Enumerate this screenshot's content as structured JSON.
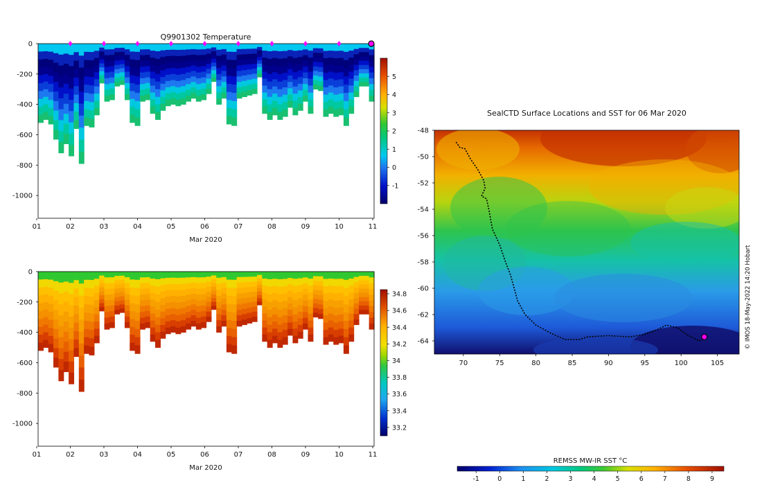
{
  "chart_data": [
    {
      "type": "heatmap",
      "title": "Q9901302  Temperature",
      "xlabel": "Mar 2020",
      "xticks": [
        "01",
        "02",
        "03",
        "04",
        "05",
        "06",
        "07",
        "08",
        "09",
        "10",
        "11"
      ],
      "yticks": [
        "0",
        "-200",
        "-400",
        "-600",
        "-800",
        "-1000"
      ],
      "ylim": [
        -1150,
        0
      ],
      "xlim_days": [
        1,
        11
      ],
      "colorbar": {
        "ticks": [
          "5",
          "4",
          "3",
          "2",
          "1",
          "0",
          "-1"
        ],
        "range": [
          -2,
          6
        ]
      },
      "surface_markers_days": [
        2,
        3,
        4,
        5,
        6,
        7,
        8,
        9,
        10,
        11
      ],
      "profile_max_depths": [
        520,
        500,
        530,
        630,
        720,
        660,
        740,
        560,
        790,
        540,
        550,
        470,
        260,
        380,
        370,
        280,
        270,
        370,
        520,
        540,
        380,
        370,
        460,
        500,
        440,
        410,
        400,
        410,
        400,
        380,
        360,
        380,
        370,
        330,
        250,
        400,
        360,
        530,
        540,
        360,
        350,
        340,
        330,
        220,
        460,
        500,
        470,
        500,
        480,
        420,
        470,
        440,
        380,
        460,
        300,
        310,
        480,
        460,
        480,
        470,
        540,
        460,
        350,
        280,
        280,
        380
      ]
    },
    {
      "type": "heatmap",
      "title": "",
      "xlabel": "Mar 2020",
      "xticks": [
        "01",
        "02",
        "03",
        "04",
        "05",
        "06",
        "07",
        "08",
        "09",
        "10",
        "11"
      ],
      "yticks": [
        "0",
        "-200",
        "-400",
        "-600",
        "-800",
        "-1000"
      ],
      "ylim": [
        -1150,
        0
      ],
      "colorbar": {
        "ticks": [
          "34.8",
          "34.6",
          "34.4",
          "34.2",
          "34",
          "33.8",
          "33.6",
          "33.4",
          "33.2"
        ],
        "range": [
          33.1,
          34.85
        ]
      },
      "profile_max_depths": [
        520,
        500,
        530,
        630,
        720,
        660,
        740,
        560,
        790,
        540,
        550,
        470,
        260,
        380,
        370,
        280,
        270,
        370,
        520,
        540,
        380,
        370,
        460,
        500,
        440,
        410,
        400,
        410,
        400,
        380,
        360,
        380,
        370,
        330,
        250,
        400,
        360,
        530,
        540,
        360,
        350,
        340,
        330,
        220,
        460,
        500,
        470,
        500,
        480,
        420,
        470,
        440,
        380,
        460,
        300,
        310,
        480,
        460,
        480,
        470,
        540,
        460,
        350,
        280,
        280,
        380
      ]
    },
    {
      "type": "map",
      "title": "SealCTD Surface Locations and SST for 06 Mar 2020",
      "xlim": [
        66,
        108
      ],
      "ylim": [
        -65,
        -48
      ],
      "xticks": [
        "70",
        "75",
        "80",
        "85",
        "90",
        "95",
        "100",
        "105"
      ],
      "yticks": [
        "-48",
        "-50",
        "-52",
        "-54",
        "-56",
        "-58",
        "-60",
        "-62",
        "-64"
      ],
      "colorbar": {
        "label": "REMSS MW-IR SST °C",
        "ticks": [
          "-1",
          "0",
          "1",
          "2",
          "3",
          "4",
          "5",
          "6",
          "7",
          "8",
          "9"
        ],
        "range": [
          -1.8,
          9.5
        ]
      },
      "track": [
        [
          69.0,
          -48.9
        ],
        [
          69.5,
          -49.3
        ],
        [
          70.2,
          -49.4
        ],
        [
          71.0,
          -50.2
        ],
        [
          72.0,
          -51.0
        ],
        [
          72.8,
          -51.8
        ],
        [
          73.0,
          -52.4
        ],
        [
          72.5,
          -53.0
        ],
        [
          73.2,
          -53.2
        ],
        [
          73.5,
          -54.0
        ],
        [
          74.0,
          -55.5
        ],
        [
          75.0,
          -56.7
        ],
        [
          75.8,
          -58.0
        ],
        [
          76.5,
          -59.0
        ],
        [
          77.0,
          -60.0
        ],
        [
          77.5,
          -61.0
        ],
        [
          78.5,
          -62.0
        ],
        [
          80.0,
          -62.8
        ],
        [
          82.0,
          -63.4
        ],
        [
          84.0,
          -63.9
        ],
        [
          86.0,
          -63.9
        ],
        [
          87.0,
          -63.7
        ],
        [
          90.0,
          -63.6
        ],
        [
          93.0,
          -63.7
        ],
        [
          95.0,
          -63.5
        ],
        [
          96.5,
          -63.2
        ],
        [
          98.0,
          -62.8
        ],
        [
          99.5,
          -63.0
        ],
        [
          101.0,
          -63.6
        ],
        [
          102.5,
          -64.0
        ],
        [
          103.2,
          -63.8
        ]
      ],
      "end_marker": [
        103.2,
        -63.7
      ]
    }
  ],
  "credit": "© IMOS 18-May-2022 14:20 Hobart",
  "colors": {
    "end_marker": "#ff00ff",
    "surface_marker": "#ff00ff",
    "track": "#000000"
  }
}
